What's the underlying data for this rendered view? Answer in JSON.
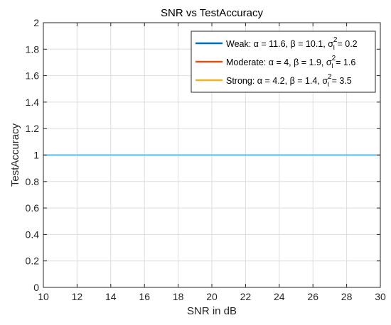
{
  "chart_data": {
    "type": "line",
    "title": "SNR vs TestAccuracy",
    "xlabel": "SNR in dB",
    "ylabel": "TestAccuracy",
    "xlim": [
      10,
      30
    ],
    "ylim": [
      0,
      2
    ],
    "xticks": [
      10,
      12,
      14,
      16,
      18,
      20,
      22,
      24,
      26,
      28,
      30
    ],
    "yticks": [
      0,
      0.2,
      0.4,
      0.6,
      0.8,
      1,
      1.2,
      1.4,
      1.6,
      1.8,
      2
    ],
    "grid": true,
    "legend_position": "top-right",
    "x": [
      10,
      12,
      14,
      16,
      18,
      20,
      22,
      24,
      26,
      28,
      30
    ],
    "series": [
      {
        "name": "Weak: α = 11.6, β = 10.1, σ_I^2 = 0.2",
        "legend": {
          "main": "Weak: α = 11.6, β = 10.1, σ",
          "sub": "I",
          "sup": "2",
          "tail": " = 0.2"
        },
        "color": "#0072BD",
        "values": [
          1,
          1,
          1,
          1,
          1,
          1,
          1,
          1,
          1,
          1,
          1
        ]
      },
      {
        "name": "Moderate: α = 4, β = 1.9, σ_I^2 = 1.6",
        "legend": {
          "main": "Moderate: α = 4, β = 1.9, σ",
          "sub": "I",
          "sup": "2",
          "tail": " = 1.6"
        },
        "color": "#D95319",
        "values": [
          1,
          1,
          1,
          1,
          1,
          1,
          1,
          1,
          1,
          1,
          1
        ]
      },
      {
        "name": "Strong: α = 4.2, β = 1.4, σ_I^2 = 3.5",
        "legend": {
          "main": "Strong: α = 4.2, β = 1.4, σ",
          "sub": "I",
          "sup": "2",
          "tail": " = 3.5"
        },
        "color": "#EDB120",
        "values": [
          1,
          1,
          1,
          1,
          1,
          1,
          1,
          1,
          1,
          1,
          1
        ]
      }
    ],
    "visible_line_color": "#4DBEEE"
  }
}
